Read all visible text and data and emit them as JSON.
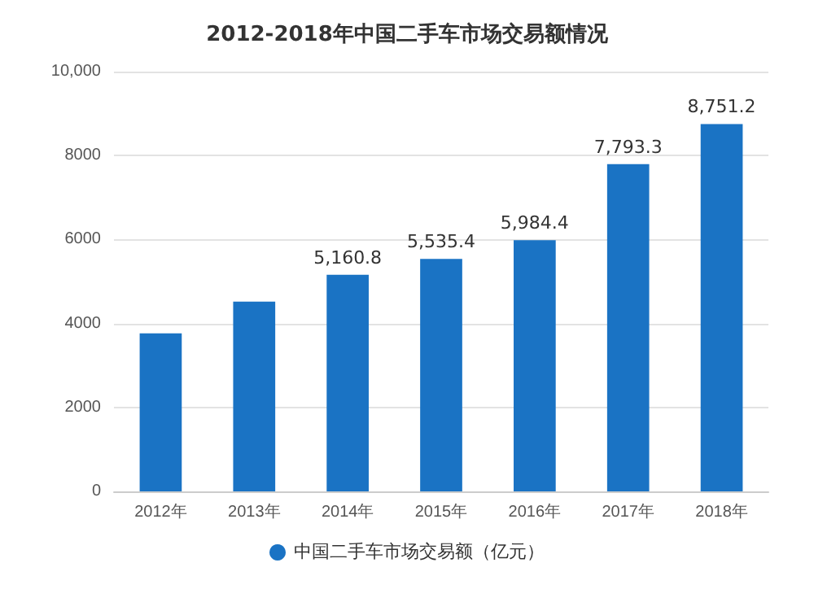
{
  "chart_data": {
    "type": "bar",
    "title": "2012-2018年中国二手车市场交易额情况",
    "categories": [
      "2012年",
      "2013年",
      "2014年",
      "2015年",
      "2016年",
      "2017年",
      "2018年"
    ],
    "series": [
      {
        "name": "中国二手车市场交易额（亿元）",
        "color": "#1a73c4",
        "values": [
          3766,
          4520,
          5160.8,
          5535.4,
          5984.4,
          7793.3,
          8751.2
        ],
        "value_labels": [
          null,
          null,
          "5,160.8",
          "5,535.4",
          "5,984.4",
          "7,793.3",
          "8,751.2"
        ]
      }
    ],
    "ylim": [
      0,
      10000
    ],
    "yticks": [
      0,
      2000,
      4000,
      6000,
      8000,
      {
        "value": 10000,
        "label": "10,000"
      }
    ],
    "grid": "y",
    "legend": "bottom"
  }
}
